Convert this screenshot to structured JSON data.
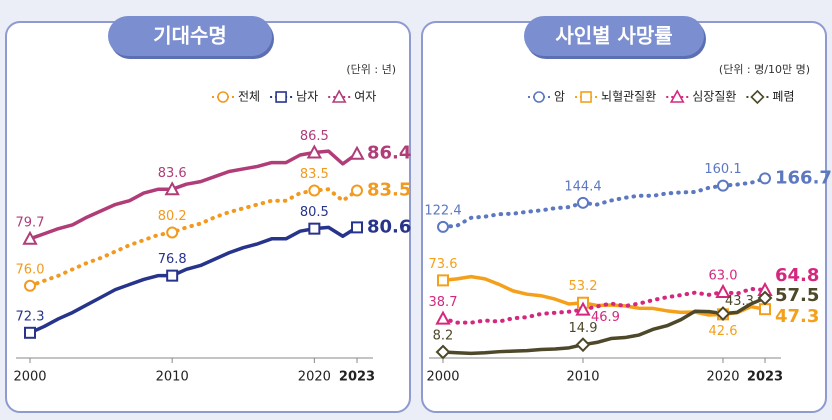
{
  "chart_data": [
    {
      "type": "line",
      "title": "기대수명",
      "unit": "(단위 : 년)",
      "x": [
        2000,
        2001,
        2002,
        2003,
        2004,
        2005,
        2006,
        2007,
        2008,
        2009,
        2010,
        2011,
        2012,
        2013,
        2014,
        2015,
        2016,
        2017,
        2018,
        2019,
        2020,
        2021,
        2022,
        2023
      ],
      "xlim": [
        2000,
        2023
      ],
      "xticks": [
        2000,
        2010,
        2020,
        2023
      ],
      "ylim": [
        70,
        90
      ],
      "series": [
        {
          "name": "전체",
          "color": "#f29a1f",
          "line_style": "dotted",
          "marker": "circle",
          "values": [
            76.0,
            76.4,
            76.8,
            77.3,
            77.8,
            78.2,
            78.7,
            79.2,
            79.6,
            80.0,
            80.2,
            80.6,
            80.9,
            81.4,
            81.8,
            82.1,
            82.4,
            82.7,
            82.7,
            83.3,
            83.5,
            83.6,
            82.7,
            83.5
          ],
          "value_labels": [
            "76.0",
            null,
            null,
            null,
            null,
            null,
            null,
            null,
            null,
            null,
            "80.2",
            null,
            null,
            null,
            null,
            null,
            null,
            null,
            null,
            null,
            "83.5",
            null,
            null,
            "83.5"
          ]
        },
        {
          "name": "남자",
          "color": "#27348b",
          "line_style": "solid",
          "marker": "square",
          "values": [
            72.3,
            72.8,
            73.4,
            73.9,
            74.5,
            75.1,
            75.7,
            76.1,
            76.5,
            76.8,
            76.8,
            77.3,
            77.6,
            78.1,
            78.6,
            79.0,
            79.3,
            79.7,
            79.7,
            80.3,
            80.5,
            80.6,
            79.9,
            80.6
          ],
          "value_labels": [
            "72.3",
            null,
            null,
            null,
            null,
            null,
            null,
            null,
            null,
            null,
            "76.8",
            null,
            null,
            null,
            null,
            null,
            null,
            null,
            null,
            null,
            "80.5",
            null,
            null,
            "80.6"
          ]
        },
        {
          "name": "여자",
          "color": "#b03c78",
          "line_style": "solid",
          "marker": "triangle",
          "values": [
            79.7,
            80.1,
            80.5,
            80.8,
            81.4,
            81.9,
            82.4,
            82.7,
            83.3,
            83.6,
            83.6,
            84.0,
            84.2,
            84.6,
            85.0,
            85.2,
            85.4,
            85.7,
            85.7,
            86.3,
            86.5,
            86.6,
            85.6,
            86.4
          ],
          "value_labels": [
            "79.7",
            null,
            null,
            null,
            null,
            null,
            null,
            null,
            null,
            null,
            "83.6",
            null,
            null,
            null,
            null,
            null,
            null,
            null,
            null,
            null,
            "86.5",
            null,
            null,
            "86.4"
          ]
        }
      ]
    },
    {
      "type": "line",
      "title": "사인별 사망률",
      "unit": "(단위 : 명/10만 명)",
      "x": [
        2000,
        2001,
        2002,
        2003,
        2004,
        2005,
        2006,
        2007,
        2008,
        2009,
        2010,
        2011,
        2012,
        2013,
        2014,
        2015,
        2016,
        2017,
        2018,
        2019,
        2020,
        2021,
        2022,
        2023
      ],
      "xlim": [
        2000,
        2023
      ],
      "xticks": [
        2000,
        2010,
        2020,
        2023
      ],
      "ylim": [
        0,
        220
      ],
      "series": [
        {
          "name": "암",
          "color": "#5b78c0",
          "line_style": "dotted",
          "marker": "circle",
          "values": [
            122.4,
            123.5,
            130.7,
            131.8,
            134.0,
            134.5,
            136.2,
            137.5,
            139.5,
            140.5,
            144.4,
            142.8,
            146.5,
            149.0,
            150.9,
            150.8,
            153.0,
            153.9,
            154.3,
            158.2,
            160.1,
            161.1,
            162.7,
            166.7
          ],
          "value_labels": [
            "122.4",
            null,
            null,
            null,
            null,
            null,
            null,
            null,
            null,
            null,
            "144.4",
            null,
            null,
            null,
            null,
            null,
            null,
            null,
            null,
            null,
            "160.1",
            null,
            null,
            "166.7"
          ]
        },
        {
          "name": "뇌혈관질환",
          "color": "#f5a01a",
          "line_style": "solid",
          "marker": "square",
          "values": [
            73.6,
            75.0,
            77.0,
            75.0,
            70.0,
            64.0,
            61.0,
            59.6,
            56.5,
            52.0,
            53.2,
            50.7,
            51.1,
            50.3,
            48.2,
            48.0,
            45.8,
            44.4,
            44.7,
            42.0,
            42.6,
            44.0,
            49.6,
            47.3
          ],
          "value_labels": [
            "73.6",
            null,
            null,
            null,
            null,
            null,
            null,
            null,
            null,
            null,
            "53.2",
            null,
            null,
            null,
            null,
            null,
            null,
            null,
            null,
            null,
            "42.6",
            null,
            null,
            "47.3"
          ]
        },
        {
          "name": "심장질환",
          "color": "#d4287f",
          "line_style": "dotted",
          "marker": "triangle",
          "values": [
            38.7,
            35.0,
            35.0,
            37.0,
            36.0,
            39.0,
            40.0,
            43.0,
            44.0,
            45.0,
            46.9,
            49.8,
            52.5,
            50.2,
            52.4,
            55.6,
            58.2,
            60.2,
            62.4,
            60.4,
            63.0,
            61.5,
            65.8,
            64.8
          ],
          "value_labels": [
            "38.7",
            null,
            null,
            null,
            null,
            null,
            null,
            null,
            null,
            null,
            "46.9",
            null,
            null,
            null,
            null,
            null,
            null,
            null,
            null,
            null,
            "63.0",
            null,
            null,
            "64.8"
          ]
        },
        {
          "name": "폐렴",
          "color": "#4d4829",
          "line_style": "solid",
          "marker": "diamond",
          "values": [
            8.2,
            7.5,
            7.0,
            7.5,
            8.5,
            9.0,
            9.5,
            10.5,
            11.0,
            12.0,
            14.9,
            17.0,
            20.5,
            21.4,
            23.7,
            28.9,
            32.2,
            37.8,
            45.4,
            45.1,
            43.3,
            44.4,
            52.1,
            57.5
          ],
          "value_labels": [
            "8.2",
            null,
            null,
            null,
            null,
            null,
            null,
            null,
            null,
            null,
            "14.9",
            null,
            null,
            null,
            null,
            null,
            null,
            null,
            null,
            null,
            "43.3",
            null,
            null,
            "57.5"
          ]
        }
      ]
    }
  ]
}
